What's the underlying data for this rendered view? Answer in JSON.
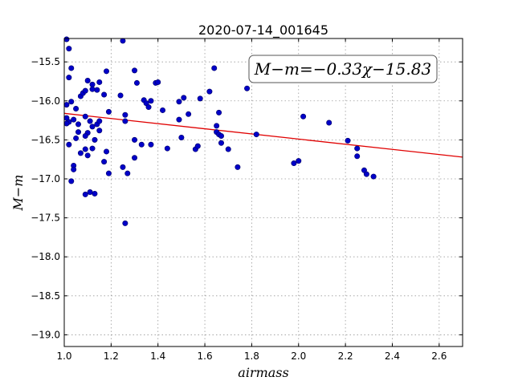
{
  "chart_data": {
    "type": "scatter",
    "title": "2020-07-14_001645",
    "xlabel": "airmass",
    "ylabel": "M−m",
    "xlim": [
      1.0,
      2.7
    ],
    "ylim": [
      -19.15,
      -15.2
    ],
    "y_inverted": true,
    "grid": true,
    "xticks": [
      1.0,
      1.2,
      1.4,
      1.6,
      1.8,
      2.0,
      2.2,
      2.4,
      2.6
    ],
    "yticks": [
      -15.5,
      -16.0,
      -16.5,
      -17.0,
      -17.5,
      -18.0,
      -18.5,
      -19.0
    ],
    "xtick_labels": [
      "1.0",
      "1.2",
      "1.4",
      "1.6",
      "1.8",
      "2.0",
      "2.2",
      "2.4",
      "2.6"
    ],
    "ytick_labels": [
      "−15.5",
      "−16.0",
      "−16.5",
      "−17.0",
      "−17.5",
      "−18.0",
      "−18.5",
      "−19.0"
    ],
    "annotation": "M−m=−0.33χ−15.83",
    "fit": {
      "slope": -0.33,
      "intercept": -15.83
    },
    "colors": {
      "points": "#0000c8",
      "fit_line": "#e00000"
    },
    "points": [
      [
        1.01,
        -15.21
      ],
      [
        1.02,
        -15.33
      ],
      [
        1.03,
        -15.58
      ],
      [
        1.02,
        -15.7
      ],
      [
        1.01,
        -16.05
      ],
      [
        1.03,
        -16.01
      ],
      [
        1.01,
        -16.22
      ],
      [
        1.02,
        -16.27
      ],
      [
        1.04,
        -16.24
      ],
      [
        1.01,
        -16.29
      ],
      [
        1.02,
        -16.56
      ],
      [
        1.05,
        -16.1
      ],
      [
        1.06,
        -16.3
      ],
      [
        1.06,
        -16.4
      ],
      [
        1.07,
        -15.94
      ],
      [
        1.08,
        -15.9
      ],
      [
        1.09,
        -15.87
      ],
      [
        1.1,
        -15.74
      ],
      [
        1.12,
        -15.79
      ],
      [
        1.15,
        -15.76
      ],
      [
        1.14,
        -15.86
      ],
      [
        1.12,
        -15.85
      ],
      [
        1.17,
        -15.92
      ],
      [
        1.18,
        -15.62
      ],
      [
        1.24,
        -15.93
      ],
      [
        1.25,
        -15.23
      ],
      [
        1.3,
        -15.61
      ],
      [
        1.31,
        -15.77
      ],
      [
        1.34,
        -15.99
      ],
      [
        1.35,
        -16.03
      ],
      [
        1.37,
        -16.0
      ],
      [
        1.39,
        -15.77
      ],
      [
        1.4,
        -15.76
      ],
      [
        1.36,
        -16.08
      ],
      [
        1.42,
        -16.12
      ],
      [
        1.09,
        -16.2
      ],
      [
        1.11,
        -16.26
      ],
      [
        1.12,
        -16.33
      ],
      [
        1.14,
        -16.3
      ],
      [
        1.15,
        -16.26
      ],
      [
        1.15,
        -16.38
      ],
      [
        1.13,
        -16.5
      ],
      [
        1.1,
        -16.41
      ],
      [
        1.09,
        -16.45
      ],
      [
        1.05,
        -16.48
      ],
      [
        1.07,
        -16.67
      ],
      [
        1.09,
        -16.62
      ],
      [
        1.1,
        -16.7
      ],
      [
        1.12,
        -16.61
      ],
      [
        1.18,
        -16.65
      ],
      [
        1.17,
        -16.78
      ],
      [
        1.19,
        -16.93
      ],
      [
        1.19,
        -16.14
      ],
      [
        1.26,
        -16.18
      ],
      [
        1.26,
        -16.26
      ],
      [
        1.3,
        -16.5
      ],
      [
        1.33,
        -16.56
      ],
      [
        1.37,
        -16.56
      ],
      [
        1.3,
        -16.73
      ],
      [
        1.25,
        -16.85
      ],
      [
        1.27,
        -16.93
      ],
      [
        1.04,
        -16.83
      ],
      [
        1.04,
        -16.88
      ],
      [
        1.03,
        -17.03
      ],
      [
        1.09,
        -17.2
      ],
      [
        1.11,
        -17.17
      ],
      [
        1.13,
        -17.19
      ],
      [
        1.26,
        -17.57
      ],
      [
        1.44,
        -16.61
      ],
      [
        1.49,
        -16.01
      ],
      [
        1.51,
        -15.96
      ],
      [
        1.53,
        -16.17
      ],
      [
        1.49,
        -16.24
      ],
      [
        1.5,
        -16.47
      ],
      [
        1.56,
        -16.62
      ],
      [
        1.57,
        -16.58
      ],
      [
        1.58,
        -15.97
      ],
      [
        1.62,
        -15.88
      ],
      [
        1.64,
        -15.58
      ],
      [
        1.66,
        -16.15
      ],
      [
        1.65,
        -16.32
      ],
      [
        1.65,
        -16.4
      ],
      [
        1.66,
        -16.43
      ],
      [
        1.67,
        -16.45
      ],
      [
        1.67,
        -16.54
      ],
      [
        1.7,
        -16.62
      ],
      [
        1.74,
        -16.85
      ],
      [
        1.78,
        -15.84
      ],
      [
        1.82,
        -16.43
      ],
      [
        1.98,
        -16.8
      ],
      [
        2.0,
        -16.77
      ],
      [
        2.02,
        -16.2
      ],
      [
        2.13,
        -16.28
      ],
      [
        2.21,
        -16.51
      ],
      [
        2.25,
        -16.61
      ],
      [
        2.25,
        -16.71
      ],
      [
        2.28,
        -16.89
      ],
      [
        2.29,
        -16.94
      ],
      [
        2.32,
        -16.97
      ]
    ]
  }
}
